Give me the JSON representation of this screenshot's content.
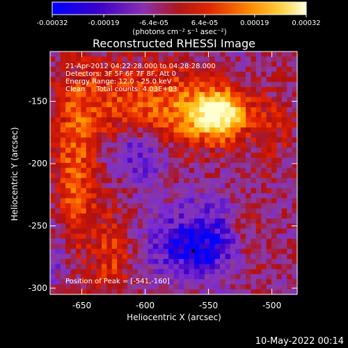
{
  "chart_data": {
    "type": "heatmap",
    "title": "Reconstructed RHESSI Image",
    "xlabel": "Heliocentric X (arcsec)",
    "ylabel": "Heliocentric Y (arcsec)",
    "xlim": [
      -675,
      -480
    ],
    "ylim": [
      -305,
      -110
    ],
    "x_ticks": [
      -650,
      -600,
      -550,
      -500
    ],
    "y_ticks": [
      -150,
      -200,
      -250,
      -300
    ],
    "colorbar": {
      "range": [
        -0.00032,
        0.00032
      ],
      "tick_values": [
        -0.00032,
        -0.00019,
        -6.4e-05,
        6.4e-05,
        0.00019,
        0.00032
      ],
      "tick_labels": [
        "-0.00032",
        "-0.00019",
        "-6.4e-05",
        "6.4e-05",
        "0.00019",
        "0.00032"
      ],
      "unit_label": "(photons cm⁻² s⁻¹ asec⁻²)"
    },
    "annotations": [
      "21-Apr-2012 04:22:28.000 to 04:28:28.000",
      "Detectors: 3F 5F 6F 7F 8F, Att 0",
      "Energy Range: 12.0 - 25.0 keV",
      "Clean     Total counts: 4.03E+03"
    ],
    "peak_label": "Position of Peak = [-541,-160]",
    "peak": [
      -541,
      -160
    ],
    "marker": [
      -562,
      -270
    ],
    "grid_size": [
      48,
      48
    ],
    "colors": {
      "background": "#000000",
      "text": "#ffffff",
      "colormap": [
        "#0000ff",
        "#3c00c8",
        "#7b2cd0",
        "#8c3aa0",
        "#b01010",
        "#e02000",
        "#ff6a00",
        "#ffb000",
        "#ffe060",
        "#ffffd0"
      ]
    }
  },
  "footer": {
    "timestamp": "10-May-2022 00:14"
  }
}
